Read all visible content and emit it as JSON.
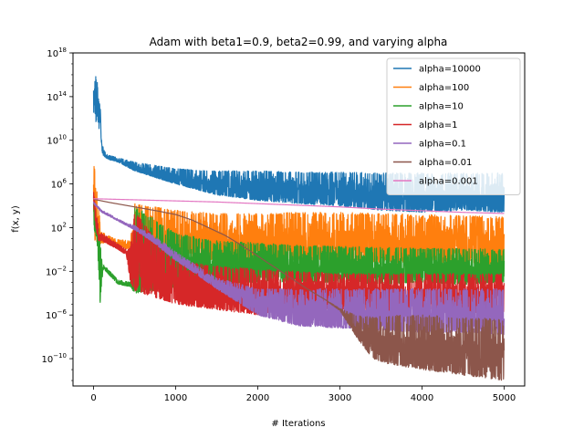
{
  "chart_data": {
    "type": "line",
    "title": "Adam with beta1=0.9, beta2=0.99, and varying alpha",
    "xlabel": "# Iterations",
    "ylabel": "f(x, y)",
    "xlim": [
      -250,
      5250
    ],
    "ylim_log10": [
      -12.5,
      18
    ],
    "y_scale": "log",
    "x_ticks": [
      0,
      1000,
      2000,
      3000,
      4000,
      5000
    ],
    "y_ticks_exp": [
      -10,
      -6,
      -2,
      2,
      6,
      10,
      14,
      18
    ],
    "legend_position": "top-right",
    "grid": false,
    "series": [
      {
        "name": "alpha=10000",
        "color": "#1f77b4",
        "envelope": {
          "x": [
            0,
            10,
            20,
            30,
            40,
            50,
            60,
            70,
            80,
            90,
            100,
            120,
            150,
            200,
            300,
            500,
            1000,
            1500,
            2000,
            2500,
            3000,
            3500,
            4000,
            4500,
            5000
          ],
          "hi": [
            17.0,
            16.8,
            16.5,
            15.6,
            16.0,
            15.0,
            13.8,
            14.5,
            13.0,
            12.5,
            10.0,
            9.2,
            8.8,
            8.6,
            8.4,
            8.0,
            7.4,
            7.2,
            7.2,
            7.1,
            7.1,
            7.0,
            7.0,
            7.0,
            7.0
          ],
          "lo": [
            11.0,
            12.0,
            12.5,
            11.5,
            12.0,
            12.5,
            11.0,
            11.0,
            11.5,
            10.5,
            9.0,
            8.6,
            8.4,
            8.2,
            8.0,
            7.2,
            6.0,
            5.0,
            4.5,
            4.2,
            4.0,
            3.6,
            3.4,
            3.6,
            3.4
          ]
        }
      },
      {
        "name": "alpha=100",
        "color": "#ff7f0e",
        "envelope": {
          "x": [
            0,
            10,
            20,
            30,
            40,
            50,
            60,
            80,
            100,
            150,
            200,
            300,
            450,
            500,
            1000,
            1500,
            2000,
            2500,
            3000,
            3500,
            4000,
            4500,
            5000
          ],
          "hi": [
            8.0,
            7.5,
            7.0,
            6.2,
            5.5,
            4.8,
            3.8,
            2.8,
            1.6,
            1.4,
            1.2,
            0.9,
            0.8,
            4.2,
            3.6,
            3.3,
            3.3,
            3.4,
            3.4,
            3.3,
            3.2,
            3.1,
            3.0
          ],
          "lo": [
            3.0,
            1.5,
            0.5,
            1.5,
            0.5,
            1.0,
            0.5,
            0.5,
            0.6,
            0.6,
            0.5,
            0.2,
            0.0,
            -0.5,
            -0.5,
            -1.0,
            -1.0,
            -1.0,
            -1.0,
            -1.2,
            -1.2,
            -1.2,
            -1.5
          ]
        }
      },
      {
        "name": "alpha=10",
        "color": "#2ca02c",
        "envelope": {
          "x": [
            0,
            20,
            40,
            60,
            80,
            100,
            120,
            150,
            200,
            300,
            450,
            500,
            1000,
            1500,
            2000,
            2500,
            3000,
            3500,
            4000,
            4500,
            5000
          ],
          "hi": [
            5.0,
            4.0,
            3.0,
            2.0,
            0.5,
            -0.8,
            -1.2,
            -1.6,
            -2.0,
            -2.8,
            -3.0,
            4.0,
            1.5,
            0.8,
            0.6,
            0.4,
            0.3,
            0.2,
            0.1,
            0.1,
            0.0
          ],
          "lo": [
            2.0,
            1.5,
            1.0,
            -1.5,
            -5.0,
            -3.0,
            -1.8,
            -2.0,
            -2.4,
            -3.2,
            -3.4,
            -4.0,
            -3.5,
            -3.2,
            -3.0,
            -3.0,
            -3.0,
            -3.2,
            -3.0,
            -3.2,
            -3.0
          ]
        }
      },
      {
        "name": "alpha=1",
        "color": "#d62728",
        "envelope": {
          "x": [
            0,
            20,
            40,
            60,
            80,
            100,
            200,
            300,
            400,
            450,
            500,
            800,
            1000,
            1500,
            2000,
            2500,
            3000,
            3500,
            4000,
            4500,
            5000
          ],
          "hi": [
            5.5,
            4.0,
            3.0,
            2.0,
            1.5,
            1.5,
            1.0,
            0.5,
            0.0,
            0.2,
            3.6,
            0.5,
            -1.0,
            -1.5,
            -1.8,
            -2.0,
            -2.2,
            -2.2,
            -2.2,
            -2.2,
            -2.2
          ],
          "lo": [
            4.0,
            2.5,
            1.5,
            0.8,
            0.8,
            0.8,
            0.4,
            0.0,
            -0.5,
            -3.0,
            -3.8,
            -4.5,
            -5.0,
            -5.5,
            -6.0,
            -5.5,
            -5.5,
            -5.8,
            -5.5,
            -6.0,
            -5.8
          ]
        }
      },
      {
        "name": "alpha=0.1",
        "color": "#9467bd",
        "envelope": {
          "x": [
            0,
            100,
            200,
            300,
            400,
            500,
            700,
            900,
            1000,
            1200,
            1500,
            2000,
            2500,
            3000,
            3500,
            4000,
            4500,
            5000
          ],
          "hi": [
            4.4,
            3.6,
            3.2,
            2.8,
            2.4,
            2.2,
            1.4,
            0.4,
            -0.2,
            -1.2,
            -2.6,
            -3.6,
            -3.6,
            -3.6,
            -3.6,
            -3.6,
            -3.6,
            -3.6
          ],
          "lo": [
            4.2,
            3.4,
            3.0,
            2.6,
            2.2,
            1.8,
            0.8,
            -0.4,
            -1.0,
            -2.0,
            -3.6,
            -6.0,
            -7.0,
            -7.2,
            -7.4,
            -7.6,
            -7.6,
            -7.8
          ]
        }
      },
      {
        "name": "alpha=0.01",
        "color": "#8c564b",
        "envelope": {
          "x": [
            0,
            200,
            500,
            800,
            1000,
            1200,
            1400,
            1600,
            1800,
            2000,
            2200,
            2400,
            2600,
            2800,
            3000,
            3200,
            3400,
            3600,
            4000,
            4500,
            5000
          ],
          "hi": [
            4.6,
            4.3,
            3.9,
            3.5,
            3.2,
            2.7,
            2.0,
            1.3,
            0.4,
            -0.6,
            -1.6,
            -2.6,
            -3.6,
            -4.5,
            -5.4,
            -6.0,
            -6.2,
            -6.0,
            -6.0,
            -6.2,
            -6.4
          ],
          "lo": [
            4.6,
            4.3,
            3.9,
            3.5,
            3.2,
            2.7,
            2.0,
            1.3,
            0.4,
            -0.6,
            -1.6,
            -2.6,
            -3.6,
            -4.5,
            -5.6,
            -8.0,
            -10.0,
            -10.5,
            -11.0,
            -11.5,
            -12.0
          ]
        }
      },
      {
        "name": "alpha=0.001",
        "color": "#e377c2",
        "envelope": {
          "x": [
            0,
            500,
            1000,
            1500,
            2000,
            2500,
            3000,
            3500,
            4000,
            4500,
            5000
          ],
          "hi": [
            4.65,
            4.55,
            4.45,
            4.35,
            4.2,
            4.05,
            3.9,
            3.7,
            3.55,
            3.4,
            3.3
          ],
          "lo": [
            4.65,
            4.55,
            4.45,
            4.35,
            4.2,
            4.05,
            3.9,
            3.7,
            3.55,
            3.4,
            3.3
          ]
        }
      }
    ]
  }
}
